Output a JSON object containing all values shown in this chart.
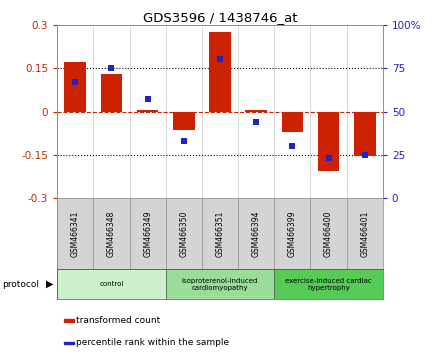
{
  "title": "GDS3596 / 1438746_at",
  "samples": [
    "GSM466341",
    "GSM466348",
    "GSM466349",
    "GSM466350",
    "GSM466351",
    "GSM466394",
    "GSM466399",
    "GSM466400",
    "GSM466401"
  ],
  "transformed_count": [
    0.17,
    0.13,
    0.005,
    -0.065,
    0.275,
    0.005,
    -0.07,
    -0.205,
    -0.155
  ],
  "percentile_rank": [
    67,
    75,
    57,
    33,
    80,
    44,
    30,
    23,
    25
  ],
  "bar_color": "#cc2200",
  "dot_color": "#2222cc",
  "ylim_left": [
    -0.3,
    0.3
  ],
  "ylim_right": [
    0,
    100
  ],
  "yticks_left": [
    -0.3,
    -0.15,
    0,
    0.15,
    0.3
  ],
  "yticks_right": [
    0,
    25,
    50,
    75,
    100
  ],
  "groups": [
    {
      "label": "control",
      "start": 0,
      "end": 3,
      "color": "#ccf0cc"
    },
    {
      "label": "isoproterenol-induced\ncardiomyopathy",
      "start": 3,
      "end": 6,
      "color": "#99dd99"
    },
    {
      "label": "exercise-induced cardiac\nhypertrophy",
      "start": 6,
      "end": 9,
      "color": "#55cc55"
    }
  ],
  "sample_box_color": "#d4d4d4",
  "sample_box_edge": "#888888",
  "protocol_label": "protocol",
  "legend": [
    {
      "label": "transformed count",
      "color": "#cc2200"
    },
    {
      "label": "percentile rank within the sample",
      "color": "#2222cc"
    }
  ],
  "dot_color_hex": "#2222cc",
  "zero_line_color": "#cc2200",
  "grid_dotted_color": "#444444",
  "plot_bg": "#ffffff",
  "bar_width": 0.6
}
